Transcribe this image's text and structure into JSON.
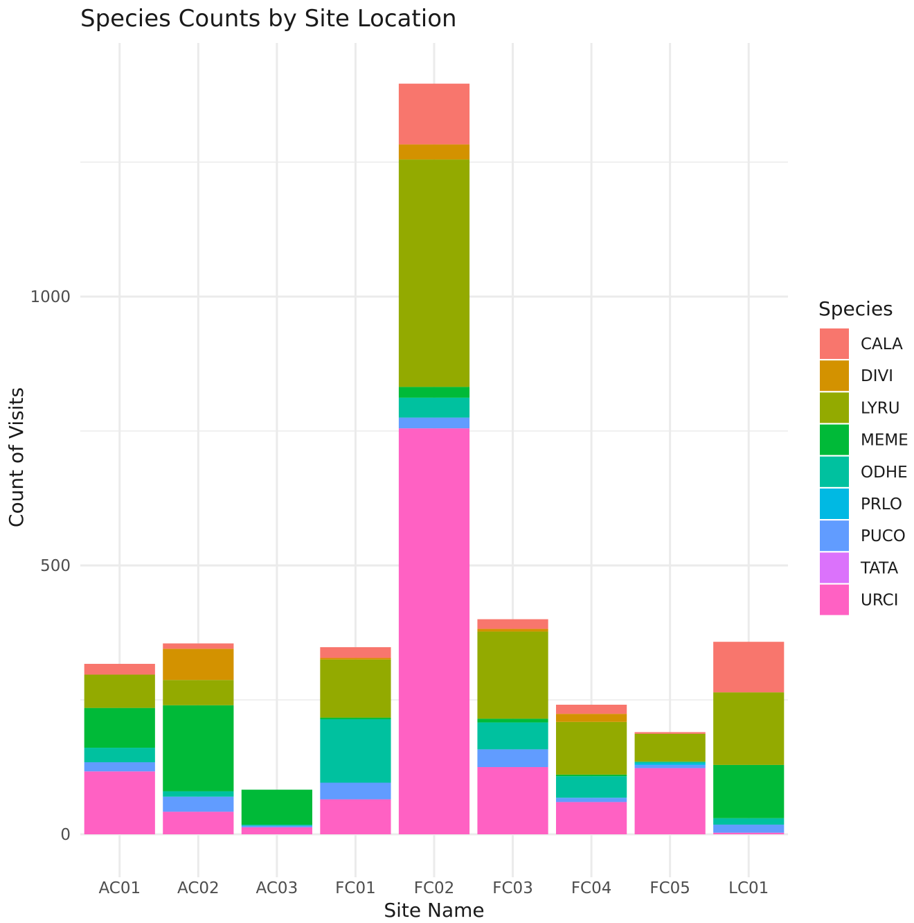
{
  "chart_data": {
    "type": "bar",
    "stacked": true,
    "title": "Species Counts by Site Location",
    "xlabel": "Site Name",
    "ylabel": "Count of Visits",
    "ylim": [
      -75,
      1460
    ],
    "yticks": [
      0,
      500,
      1000
    ],
    "grid": true,
    "legend": {
      "title": "Species",
      "placement": "right"
    },
    "categories": [
      "AC01",
      "AC02",
      "AC03",
      "FC01",
      "FC02",
      "FC03",
      "FC04",
      "FC05",
      "LC01"
    ],
    "series": [
      {
        "name": "URCI",
        "color": "#FF61C3",
        "values": [
          117,
          42,
          13,
          65,
          755,
          125,
          60,
          123,
          3
        ]
      },
      {
        "name": "TATA",
        "color": "#DB72FB",
        "values": [
          0,
          0,
          0,
          0,
          0,
          0,
          0,
          0,
          0
        ]
      },
      {
        "name": "PUCO",
        "color": "#619CFF",
        "values": [
          17,
          28,
          3,
          31,
          20,
          33,
          8,
          6,
          15
        ]
      },
      {
        "name": "PRLO",
        "color": "#00B9E3",
        "values": [
          0,
          0,
          0,
          0,
          0,
          0,
          0,
          3,
          0
        ]
      },
      {
        "name": "ODHE",
        "color": "#00C19F",
        "values": [
          27,
          10,
          2,
          118,
          37,
          50,
          40,
          3,
          12
        ]
      },
      {
        "name": "MEME",
        "color": "#00BA38",
        "values": [
          74,
          160,
          65,
          3,
          20,
          7,
          3,
          0,
          99
        ]
      },
      {
        "name": "LYRU",
        "color": "#93AA00",
        "values": [
          62,
          47,
          0,
          108,
          423,
          162,
          98,
          52,
          135
        ]
      },
      {
        "name": "DIVI",
        "color": "#D39200",
        "values": [
          0,
          58,
          0,
          3,
          28,
          5,
          15,
          0,
          0
        ]
      },
      {
        "name": "CALA",
        "color": "#F8766D",
        "values": [
          20,
          10,
          0,
          20,
          113,
          18,
          17,
          3,
          94
        ]
      }
    ],
    "legend_order": [
      "CALA",
      "DIVI",
      "LYRU",
      "MEME",
      "ODHE",
      "PRLO",
      "PUCO",
      "TATA",
      "URCI"
    ]
  }
}
